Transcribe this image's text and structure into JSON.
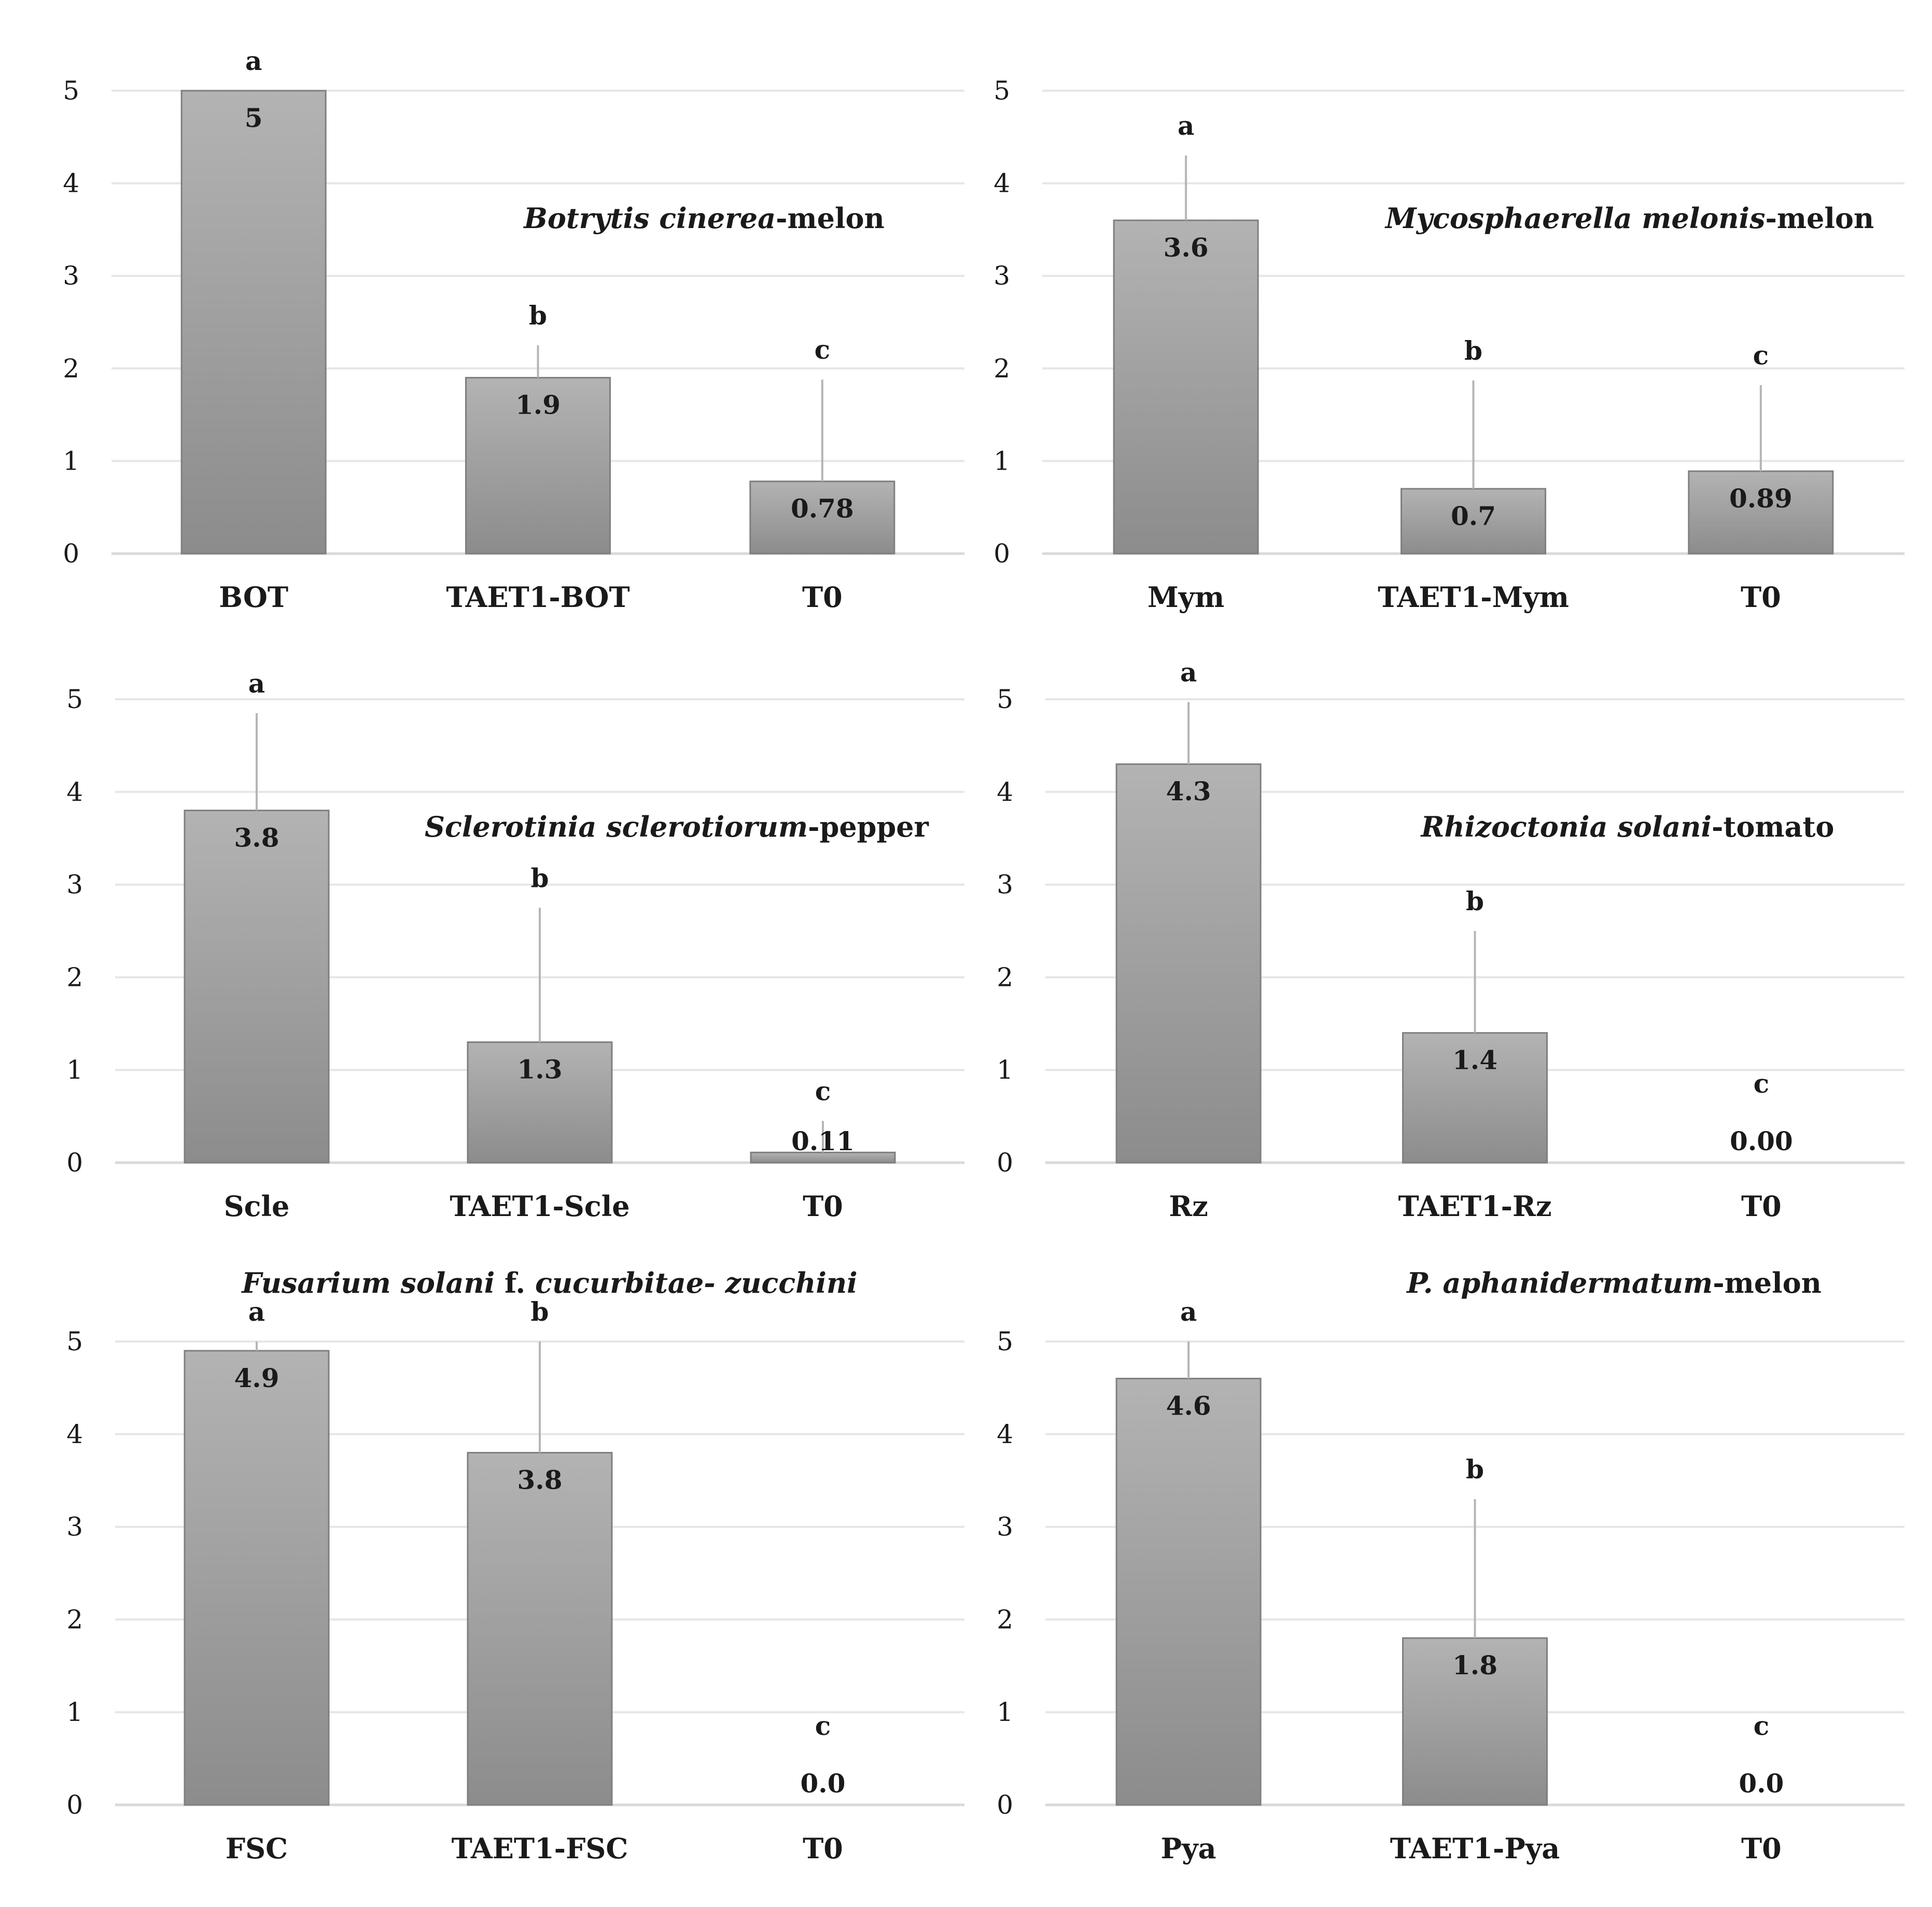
{
  "chart_data": [
    {
      "type": "bar",
      "title": "Botrytis cinerea-melon",
      "title_parts": [
        {
          "text": "Botrytis cinerea",
          "italic": true
        },
        {
          "text": "-melon",
          "italic": false
        }
      ],
      "categories": [
        "BOT",
        "TAET1-BOT",
        "T0"
      ],
      "values": [
        5,
        1.9,
        0.78
      ],
      "value_labels": [
        "5",
        "1.9",
        "0.78"
      ],
      "error_upper": [
        5,
        2.25,
        1.88
      ],
      "significance": [
        "a",
        "b",
        "c"
      ],
      "yticks": [
        "0",
        "1",
        "2",
        "3",
        "4",
        "5"
      ],
      "ylim": [
        0,
        5
      ],
      "xlabel": "",
      "ylabel": "",
      "legend": "none"
    },
    {
      "type": "bar",
      "title": "Mycosphaerella melonis-melon",
      "title_parts": [
        {
          "text": "Mycosphaerella melonis",
          "italic": true
        },
        {
          "text": "-melon",
          "italic": false
        }
      ],
      "categories": [
        "Mym",
        "TAET1-Mym",
        "T0"
      ],
      "values": [
        3.6,
        0.7,
        0.89
      ],
      "value_labels": [
        "3.6",
        "0.7",
        "0.89"
      ],
      "error_upper": [
        4.3,
        1.87,
        1.82
      ],
      "significance": [
        "a",
        "b",
        "c"
      ],
      "yticks": [
        "0",
        "1",
        "2",
        "3",
        "4",
        "5"
      ],
      "ylim": [
        0,
        5
      ],
      "xlabel": "",
      "ylabel": "",
      "legend": "none"
    },
    {
      "type": "bar",
      "title": "Sclerotinia sclerotiorum-pepper",
      "title_parts": [
        {
          "text": "Sclerotinia sclerotiorum",
          "italic": true
        },
        {
          "text": "-pepper",
          "italic": false
        }
      ],
      "categories": [
        "Scle",
        "TAET1-Scle",
        "T0"
      ],
      "values": [
        3.8,
        1.3,
        0.11
      ],
      "value_labels": [
        "3.8",
        "1.3",
        "0.11"
      ],
      "error_upper": [
        4.85,
        2.75,
        0.45
      ],
      "significance": [
        "a",
        "b",
        "c"
      ],
      "yticks": [
        "0",
        "1",
        "2",
        "3",
        "4",
        "5"
      ],
      "ylim": [
        0,
        5
      ],
      "xlabel": "",
      "ylabel": "",
      "legend": "none"
    },
    {
      "type": "bar",
      "title": "Rhizoctonia solani-tomato",
      "title_parts": [
        {
          "text": "Rhizoctonia solani",
          "italic": true
        },
        {
          "text": "-tomato",
          "italic": false
        }
      ],
      "categories": [
        "Rz",
        "TAET1-Rz",
        "T0"
      ],
      "values": [
        4.3,
        1.4,
        0.0
      ],
      "value_labels": [
        "4.3",
        "1.4",
        "0.00"
      ],
      "error_upper": [
        4.97,
        2.5,
        0.0
      ],
      "significance": [
        "a",
        "b",
        "c"
      ],
      "yticks": [
        "0",
        "1",
        "2",
        "3",
        "4",
        "5"
      ],
      "ylim": [
        0,
        5
      ],
      "xlabel": "",
      "ylabel": "",
      "legend": "none"
    },
    {
      "type": "bar",
      "title": "Fusarium solani f. cucurbitae- zucchini",
      "title_parts": [
        {
          "text": "Fusarium solani",
          "italic": true
        },
        {
          "text": " f. ",
          "italic": false
        },
        {
          "text": "cucurbitae- zucchini",
          "italic": true
        }
      ],
      "categories": [
        "FSC",
        "TAET1-FSC",
        "T0"
      ],
      "values": [
        4.9,
        3.8,
        0.0
      ],
      "value_labels": [
        "4.9",
        "3.8",
        "0.0"
      ],
      "error_upper": [
        5.0,
        5.0,
        0.0
      ],
      "significance": [
        "a",
        "b",
        "c"
      ],
      "yticks": [
        "0",
        "1",
        "2",
        "3",
        "4",
        "5"
      ],
      "ylim": [
        0,
        5
      ],
      "xlabel": "",
      "ylabel": "",
      "legend": "none"
    },
    {
      "type": "bar",
      "title": "P. aphanidermatum-melon",
      "title_parts": [
        {
          "text": "P. aphanidermatum",
          "italic": true
        },
        {
          "text": "-melon",
          "italic": false
        }
      ],
      "categories": [
        "Pya",
        "TAET1-Pya",
        "T0"
      ],
      "values": [
        4.6,
        1.8,
        0.0
      ],
      "value_labels": [
        "4.6",
        "1.8",
        "0.0"
      ],
      "error_upper": [
        5.0,
        3.3,
        0.0
      ],
      "significance": [
        "a",
        "b",
        "c"
      ],
      "yticks": [
        "0",
        "1",
        "2",
        "3",
        "4",
        "5"
      ],
      "ylim": [
        0,
        5
      ],
      "xlabel": "",
      "ylabel": "",
      "legend": "none"
    }
  ],
  "colors": {
    "bar_top": "#b3b3b3",
    "bar_bottom": "#8c8c8c",
    "grid": "#e6e6e6",
    "text": "#1a1a1a"
  }
}
